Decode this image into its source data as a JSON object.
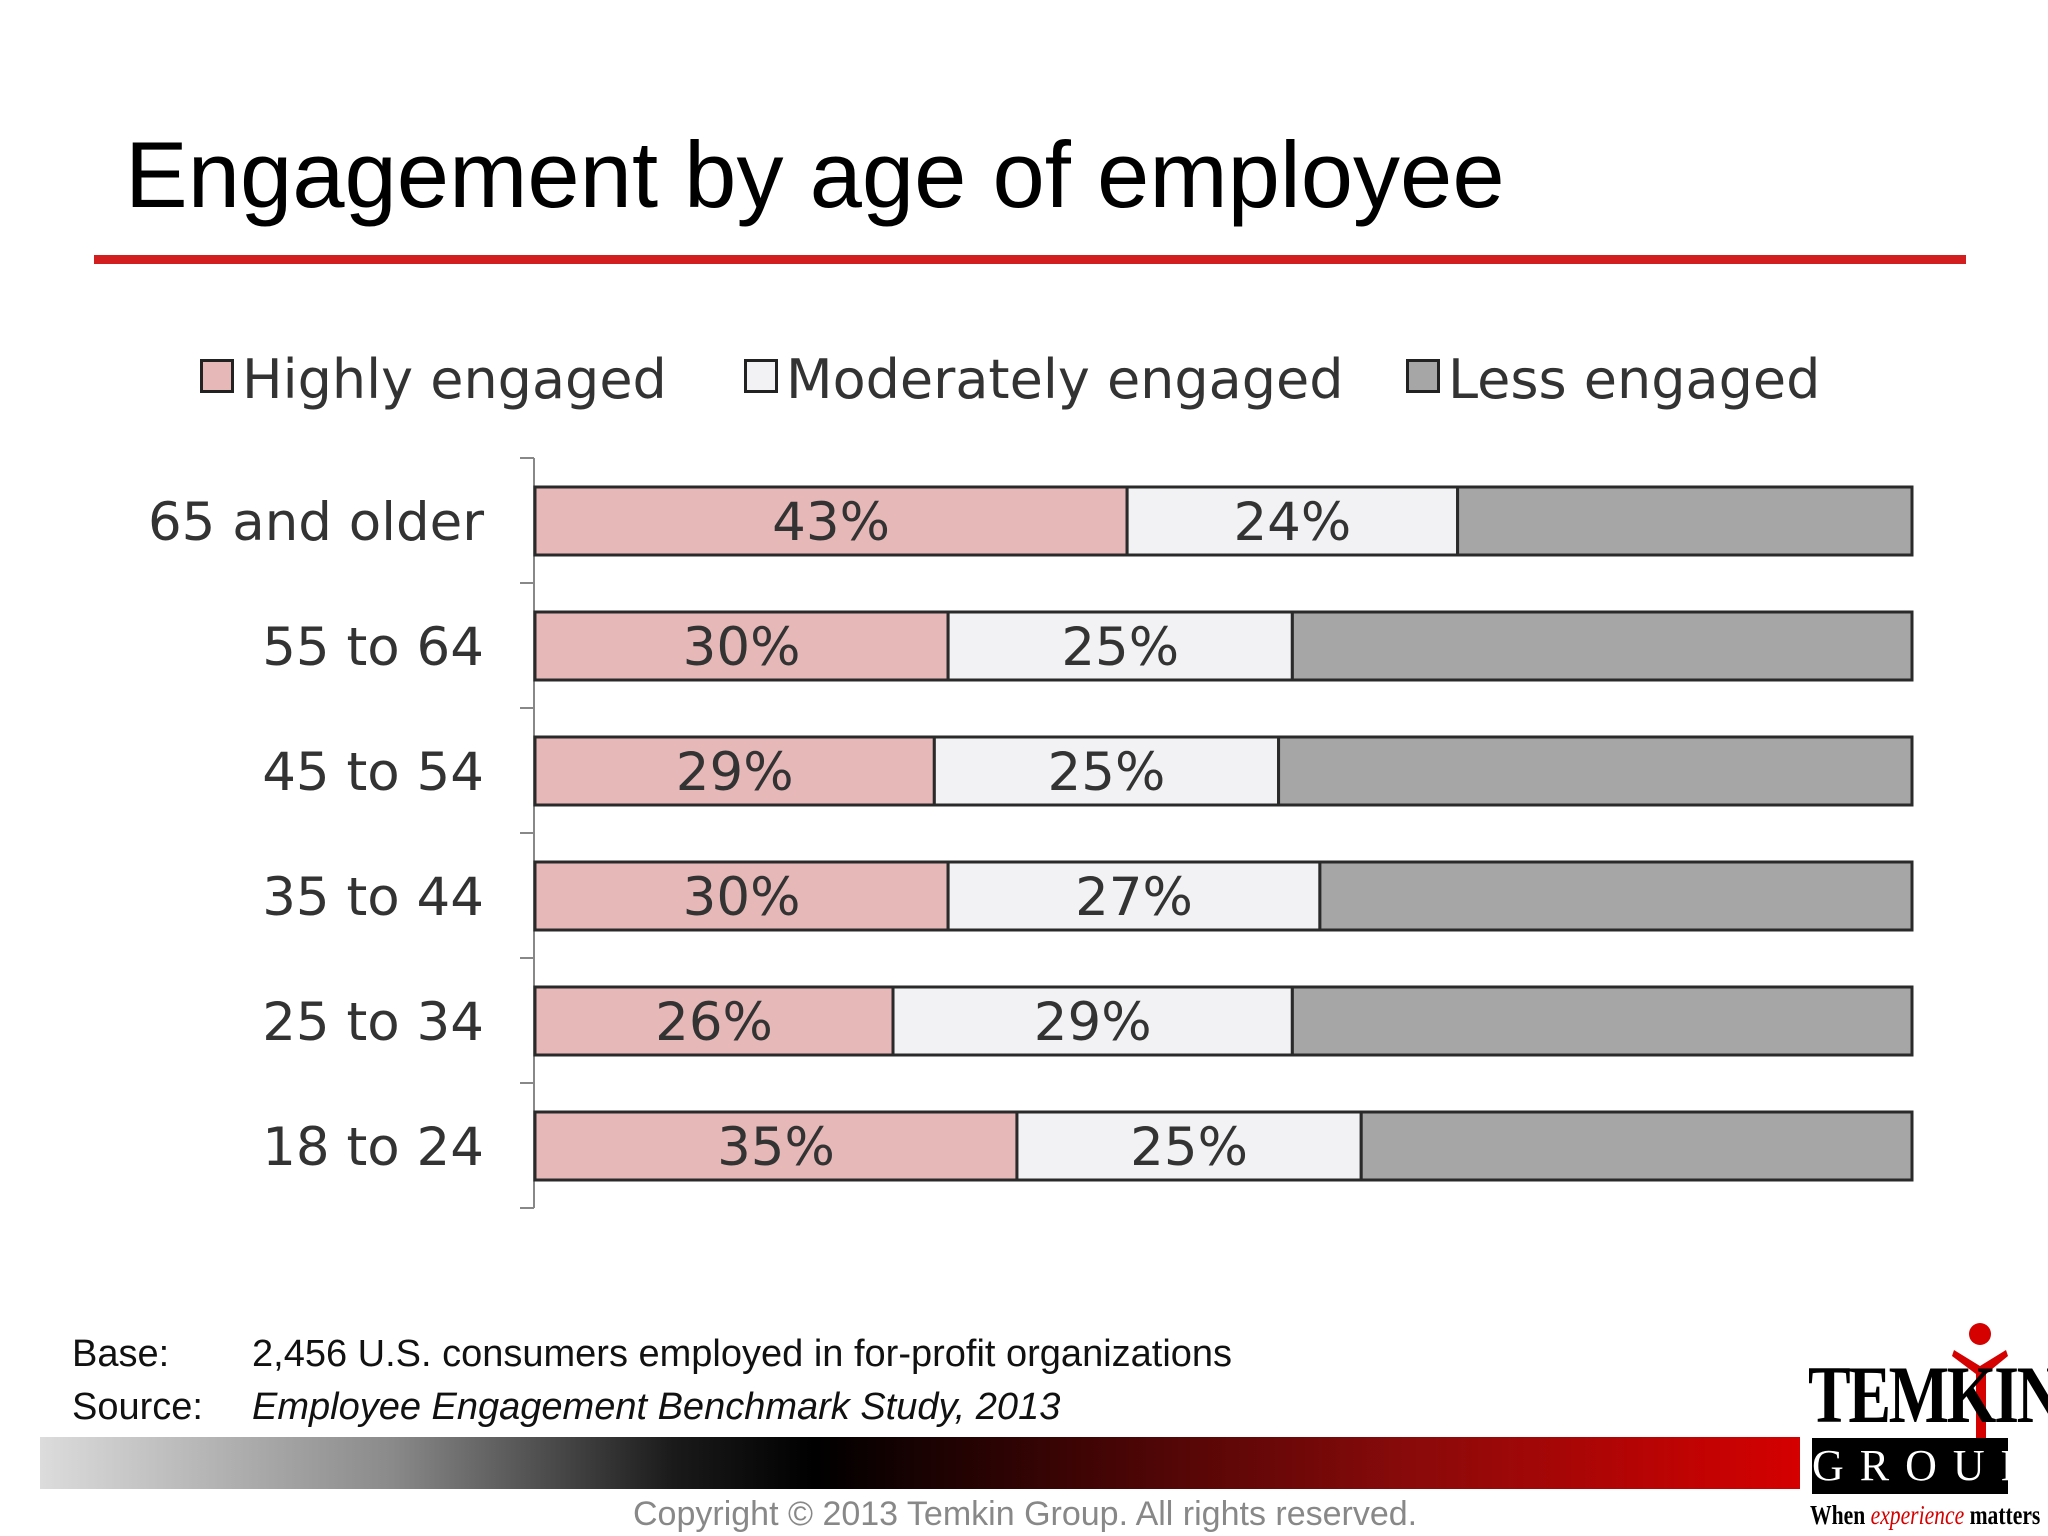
{
  "page": {
    "title": "Engagement by age of employee",
    "accent_color": "#d21e1e"
  },
  "legend": [
    {
      "label": "Highly engaged",
      "color": "#e6b8b8"
    },
    {
      "label": "Moderately engaged",
      "color": "#f2f2f4"
    },
    {
      "label": "Less engaged",
      "color": "#a6a6a6"
    }
  ],
  "chart_data": {
    "type": "bar",
    "orientation": "horizontal",
    "stacked": true,
    "categories": [
      "65 and older",
      "55 to 64",
      "45 to 54",
      "35 to 44",
      "25 to 34",
      "18 to 24"
    ],
    "series": [
      {
        "name": "Highly engaged",
        "values": [
          43,
          30,
          29,
          30,
          26,
          35
        ],
        "color": "#e6b8b8",
        "labels": [
          "43%",
          "30%",
          "29%",
          "30%",
          "26%",
          "35%"
        ]
      },
      {
        "name": "Moderately engaged",
        "values": [
          24,
          25,
          25,
          27,
          29,
          25
        ],
        "color": "#f2f2f4",
        "labels": [
          "24%",
          "25%",
          "25%",
          "27%",
          "29%",
          "25%"
        ]
      },
      {
        "name": "Less engaged",
        "values": [
          33,
          45,
          46,
          43,
          45,
          40
        ],
        "color": "#a6a6a6",
        "labels": [
          "",
          "",
          "",
          "",
          "",
          ""
        ]
      }
    ],
    "xlim": [
      0,
      100
    ],
    "legend_position": "top",
    "grid": false
  },
  "notes": {
    "base_label": "Base:",
    "base_value": "2,456 U.S. consumers employed in for-profit organizations",
    "source_label": "Source:",
    "source_value": "Employee Engagement Benchmark Study, 2013"
  },
  "footer": {
    "copyright": "Copyright © 2013 Temkin Group. All rights reserved."
  },
  "logo": {
    "word": "TEMKIN",
    "group": "GROUP",
    "tagline_start": "When ",
    "tagline_accent": "experience",
    "tagline_end": " matters"
  }
}
